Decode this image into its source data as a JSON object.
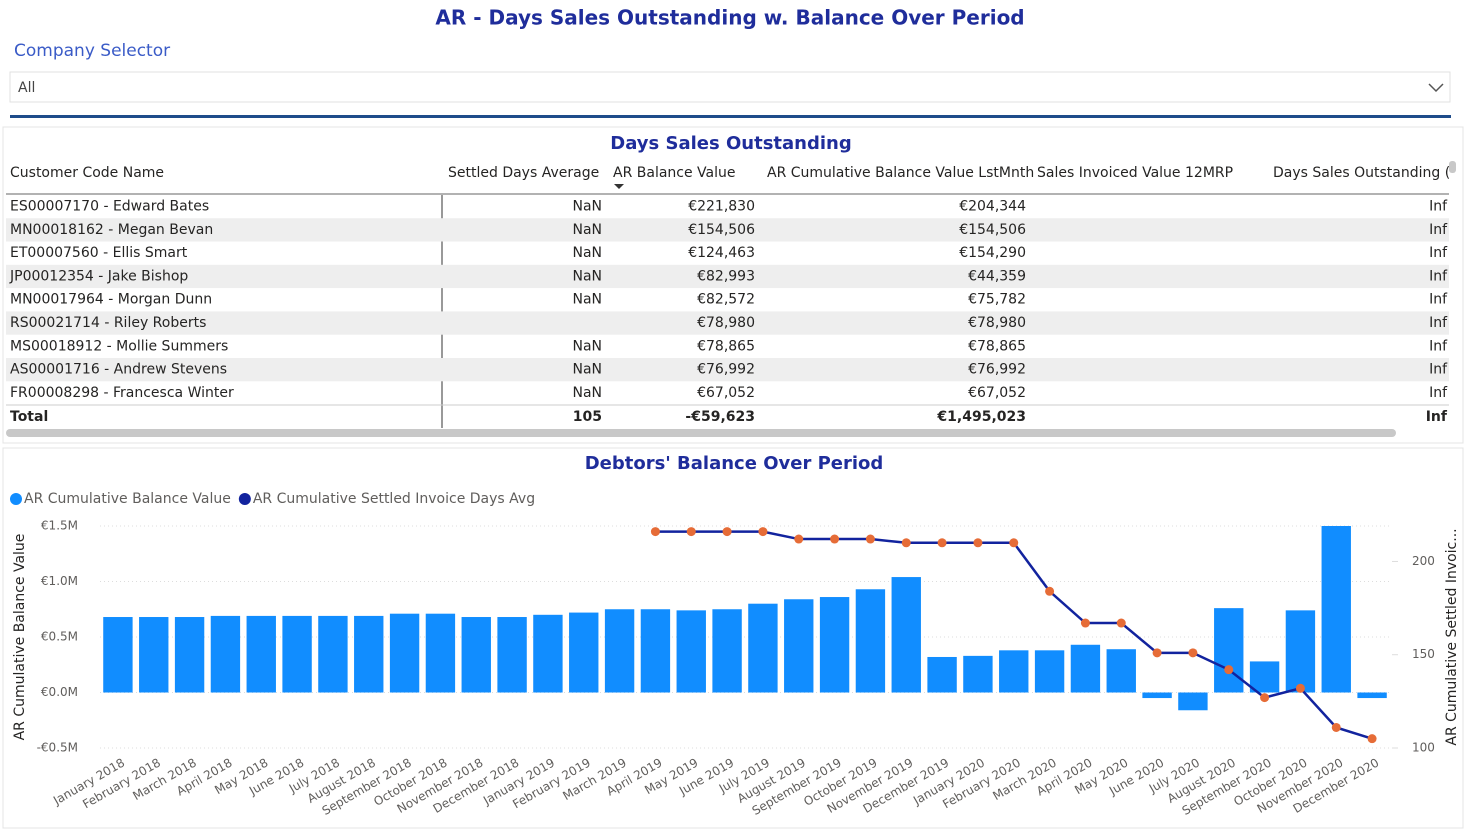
{
  "header": {
    "title": "AR - Days Sales Outstanding w. Balance Over Period"
  },
  "selector": {
    "label": "Company Selector",
    "value": "All"
  },
  "table": {
    "title": "Days Sales Outstanding",
    "columns": [
      "Customer Code Name",
      "Settled Days Average",
      "AR Balance Value",
      "AR Cumulative Balance Value LstMnth",
      "Sales Invoiced Value 12MRP",
      "Days Sales Outstanding (D"
    ],
    "rows": [
      [
        "ES00007170 - Edward Bates",
        "NaN",
        "€221,830",
        "€204,344",
        null,
        "Inf"
      ],
      [
        "MN00018162 - Megan Bevan",
        "NaN",
        "€154,506",
        "€154,506",
        null,
        "Inf"
      ],
      [
        "ET00007560 - Ellis Smart",
        "NaN",
        "€124,463",
        "€154,290",
        null,
        "Inf"
      ],
      [
        "JP00012354 - Jake Bishop",
        "NaN",
        "€82,993",
        "€44,359",
        null,
        "Inf"
      ],
      [
        "MN00017964 - Morgan Dunn",
        "NaN",
        "€82,572",
        "€75,782",
        null,
        "Inf"
      ],
      [
        "RS00021714 - Riley Roberts",
        null,
        "€78,980",
        "€78,980",
        null,
        "Inf"
      ],
      [
        "MS00018912 - Mollie Summers",
        "NaN",
        "€78,865",
        "€78,865",
        null,
        "Inf"
      ],
      [
        "AS00001716 - Andrew Stevens",
        "NaN",
        "€76,992",
        "€76,992",
        null,
        "Inf"
      ],
      [
        "FR00008298 - Francesca Winter",
        "NaN",
        "€67,052",
        "€67,052",
        null,
        "Inf"
      ]
    ],
    "total": [
      "Total",
      "105",
      "-€59,623",
      "€1,495,023",
      null,
      "Inf"
    ]
  },
  "chart_data": {
    "type": "bar",
    "title": "Debtors' Balance Over Period",
    "categories": [
      "January 2018",
      "February 2018",
      "March 2018",
      "April 2018",
      "May 2018",
      "June 2018",
      "July 2018",
      "August 2018",
      "September 2018",
      "October 2018",
      "November 2018",
      "December 2018",
      "January 2019",
      "February 2019",
      "March 2019",
      "April 2019",
      "May 2019",
      "June 2019",
      "July 2019",
      "August 2019",
      "September 2019",
      "October 2019",
      "November 2019",
      "December 2019",
      "January 2020",
      "February 2020",
      "March 2020",
      "April 2020",
      "May 2020",
      "June 2020",
      "July 2020",
      "August 2020",
      "September 2020",
      "October 2020",
      "November 2020",
      "December 2020"
    ],
    "series": [
      {
        "name": "AR Cumulative Balance Value",
        "color": "#118dff",
        "values": [
          680000,
          680000,
          680000,
          690000,
          690000,
          690000,
          690000,
          690000,
          710000,
          710000,
          680000,
          680000,
          700000,
          720000,
          750000,
          750000,
          740000,
          750000,
          800000,
          840000,
          860000,
          930000,
          1040000,
          320000,
          330000,
          380000,
          380000,
          430000,
          390000,
          -50000,
          -160000,
          760000,
          280000,
          740000,
          1500000,
          -50000
        ]
      },
      {
        "name": "AR Cumulative Settled Invoice Days Avg",
        "color": "#12239e",
        "marker_color": "#e66c37",
        "axis": "y2",
        "values": [
          null,
          null,
          null,
          null,
          null,
          null,
          null,
          null,
          null,
          null,
          null,
          null,
          null,
          null,
          null,
          216,
          216,
          216,
          216,
          212,
          212,
          212,
          210,
          210,
          210,
          210,
          184,
          167,
          167,
          151,
          151,
          142,
          127,
          132,
          111,
          105
        ]
      }
    ],
    "ylabel": "AR Cumulative Balance Value",
    "y2label": "AR Cumulative Settled Invoic...",
    "ylim": [
      -500000,
      1500000
    ],
    "yticks": [
      {
        "value": -500000,
        "label": "-€0.5M"
      },
      {
        "value": 0,
        "label": "€0.0M"
      },
      {
        "value": 500000,
        "label": "€0.5M"
      },
      {
        "value": 1000000,
        "label": "€1.0M"
      },
      {
        "value": 1500000,
        "label": "€1.5M"
      }
    ],
    "y2lim": [
      100,
      219
    ],
    "y2ticks": [
      100,
      150,
      200
    ],
    "grid": true,
    "legend": "top-left"
  }
}
